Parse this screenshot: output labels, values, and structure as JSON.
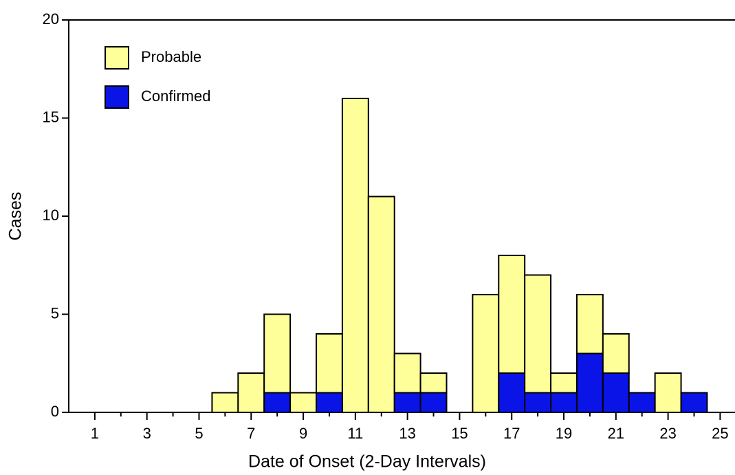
{
  "chart_data": {
    "type": "stacked_bar",
    "x_label": "Date of Onset (2-Day Intervals)",
    "y_label": "Cases",
    "x": [
      1,
      2,
      3,
      4,
      5,
      6,
      7,
      8,
      9,
      10,
      11,
      12,
      13,
      14,
      15,
      16,
      17,
      18,
      19,
      20,
      21,
      22,
      23,
      24
    ],
    "series": [
      {
        "name": "Probable",
        "color": "#ffff99",
        "values": [
          0,
          0,
          0,
          0,
          0,
          1,
          2,
          4,
          1,
          3,
          16,
          11,
          2,
          1,
          0,
          6,
          6,
          6,
          1,
          3,
          2,
          0,
          2,
          0
        ]
      },
      {
        "name": "Confirmed",
        "color": "#0a14e6",
        "values": [
          0,
          0,
          0,
          0,
          0,
          0,
          0,
          1,
          0,
          1,
          0,
          0,
          1,
          1,
          0,
          0,
          2,
          1,
          1,
          3,
          2,
          1,
          0,
          1
        ]
      }
    ],
    "stack_order": [
      "Confirmed",
      "Probable"
    ],
    "xlim": [
      0,
      25.57
    ],
    "xticks": [
      1,
      3,
      5,
      7,
      9,
      11,
      13,
      15,
      17,
      19,
      21,
      23,
      25
    ],
    "ylim": [
      0,
      20
    ],
    "yticks": [
      0,
      5,
      10,
      15,
      20
    ],
    "grid": false,
    "legend": "upper left"
  }
}
